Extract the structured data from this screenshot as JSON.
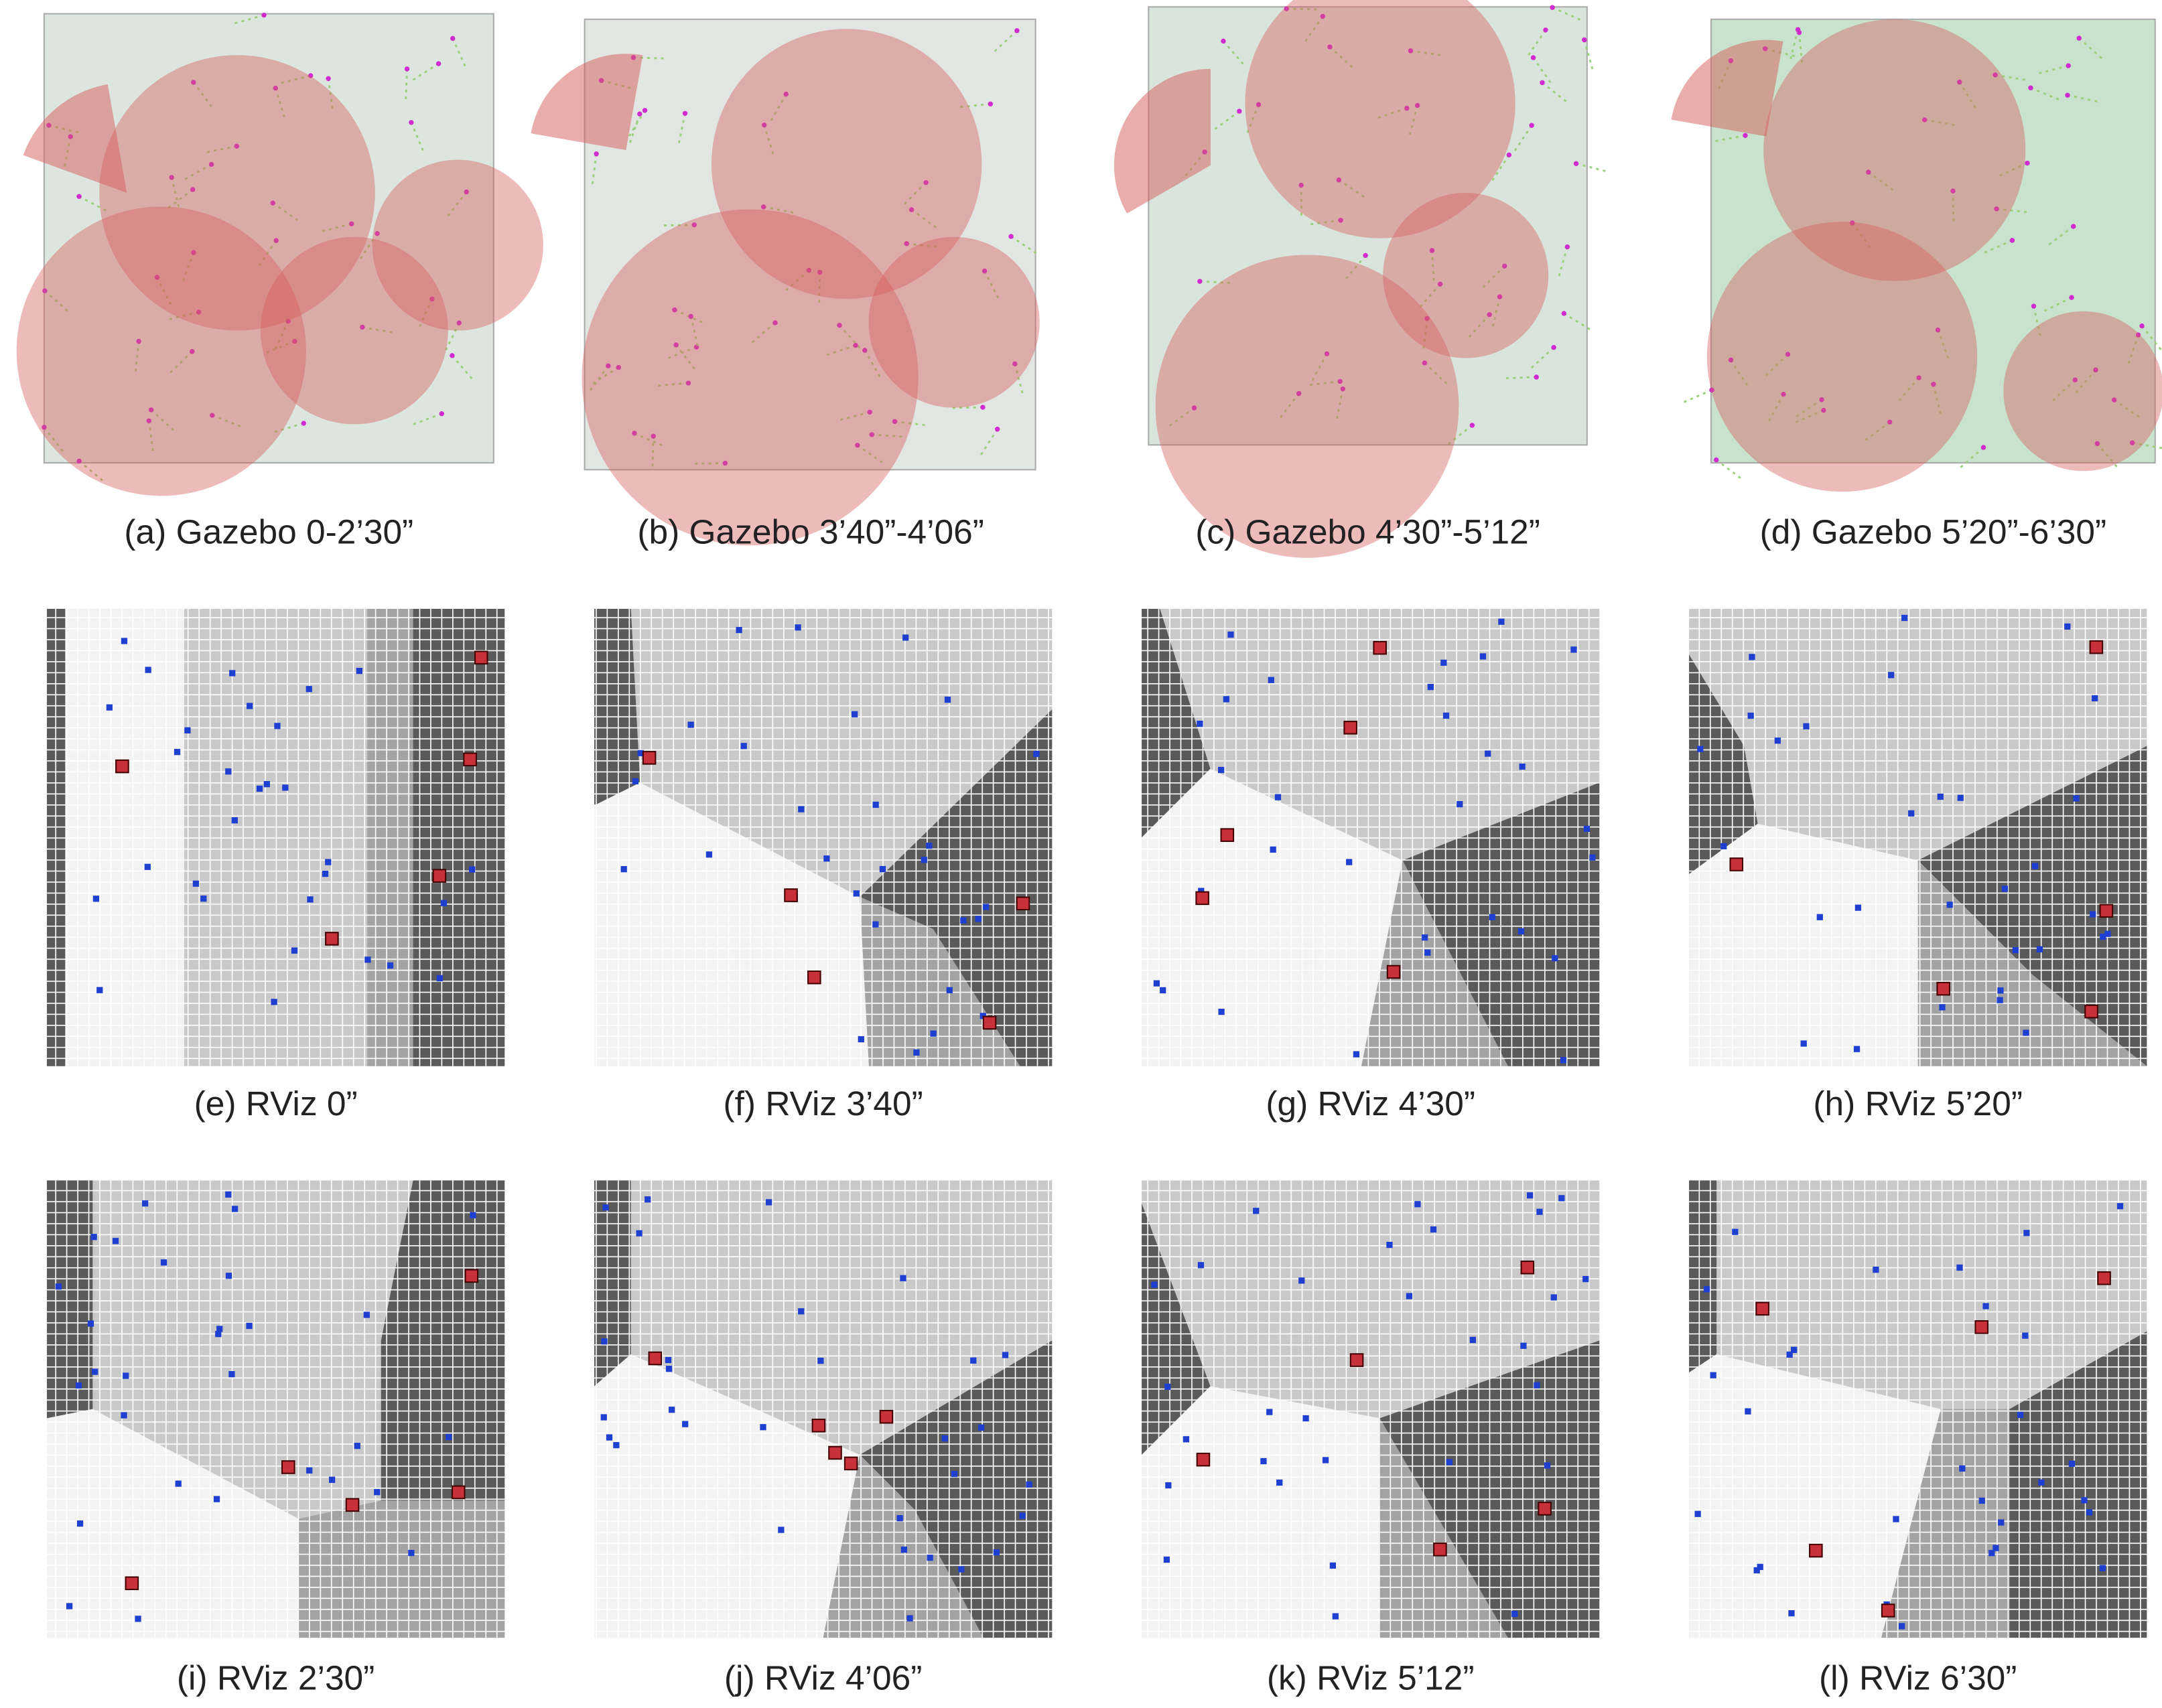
{
  "captions": [
    "(a) Gazebo 0-2’30”",
    "(b) Gazebo 3’40”-4’06”",
    "(c) Gazebo 4’30”-5’12”",
    "(d) Gazebo 5’20”-6’30”",
    "(e) RViz 0”",
    "(f) RViz 3’40”",
    "(g) RViz 4’30”",
    "(h) RViz 5’20”",
    "(i) RViz 2’30”",
    "(j) RViz 4’06”",
    "(k) RViz 5’12”",
    "(l) RViz 6’30”"
  ]
}
